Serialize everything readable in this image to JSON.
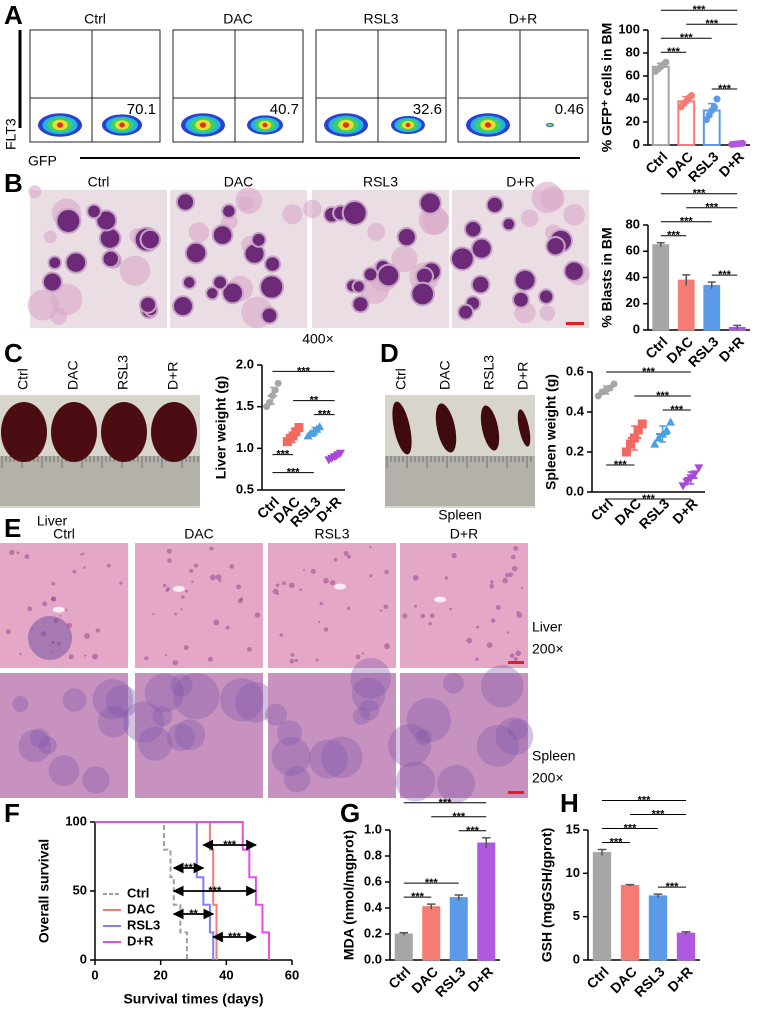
{
  "panel_labels": [
    "A",
    "B",
    "C",
    "D",
    "E",
    "F",
    "G",
    "H"
  ],
  "flow": {
    "groups": [
      "Ctrl",
      "DAC",
      "RSL3",
      "D+R"
    ],
    "percentages": [
      70.1,
      40.7,
      32.6,
      0.46
    ],
    "y_axis": "FLT3",
    "x_axis": "GFP"
  },
  "smear": {
    "groups": [
      "Ctrl",
      "DAC",
      "RSL3",
      "D+R"
    ],
    "magnification": "400×"
  },
  "organs": {
    "liver": {
      "groups": [
        "Ctrl",
        "DAC",
        "RSL3",
        "D+R"
      ],
      "label": "Liver"
    },
    "spleen": {
      "groups": [
        "Ctrl",
        "DAC",
        "RSL3",
        "D+R"
      ],
      "label": "Spleen"
    }
  },
  "histology": {
    "groups": [
      "Ctrl",
      "DAC",
      "RSL3",
      "D+R"
    ],
    "rows": [
      {
        "tissue": "Liver",
        "magnification": "200×"
      },
      {
        "tissue": "Spleen",
        "magnification": "200×"
      }
    ]
  },
  "chart_data": [
    {
      "type": "bar",
      "y_label": "% GFP⁺ cells in BM",
      "categories": [
        "Ctrl",
        "DAC",
        "RSL3",
        "D+R"
      ],
      "values": [
        68,
        38,
        30,
        1
      ],
      "errors": [
        3,
        4,
        6,
        0.5
      ],
      "points": [
        [
          64,
          66,
          68,
          70,
          72
        ],
        [
          33,
          36,
          38,
          41,
          43
        ],
        [
          22,
          26,
          30,
          33,
          40
        ],
        [
          0.5,
          0.8,
          1,
          1.2,
          1.5
        ]
      ],
      "colors": [
        "#a6a6a6",
        "#f47c74",
        "#5b9ae8",
        "#b058e0"
      ],
      "hollow": true,
      "ylim": [
        0,
        100
      ],
      "yticks": [
        0,
        20,
        40,
        60,
        80,
        100
      ],
      "significance": [
        {
          "from": "Ctrl",
          "to": "DAC",
          "label": "***"
        },
        {
          "from": "RSL3",
          "to": "D+R",
          "label": "***"
        },
        {
          "from": "Ctrl",
          "to": "RSL3",
          "label": "***"
        },
        {
          "from": "DAC",
          "to": "D+R",
          "label": "***"
        },
        {
          "from": "Ctrl",
          "to": "D+R",
          "label": "***"
        }
      ]
    },
    {
      "type": "bar",
      "y_label": "% Blasts in BM",
      "categories": [
        "Ctrl",
        "DAC",
        "RSL3",
        "D+R"
      ],
      "values": [
        65,
        38,
        34,
        2
      ],
      "errors": [
        1.5,
        4,
        2.5,
        1.5
      ],
      "colors": [
        "#a6a6a6",
        "#f47c74",
        "#5b9ae8",
        "#b058e0"
      ],
      "hollow": false,
      "ylim": [
        0,
        80
      ],
      "yticks": [
        0,
        20,
        40,
        60,
        80
      ],
      "significance": [
        {
          "from": "Ctrl",
          "to": "DAC",
          "label": "***"
        },
        {
          "from": "RSL3",
          "to": "D+R",
          "label": "***"
        },
        {
          "from": "Ctrl",
          "to": "RSL3",
          "label": "***"
        },
        {
          "from": "DAC",
          "to": "D+R",
          "label": "***"
        },
        {
          "from": "Ctrl",
          "to": "D+R",
          "label": "***"
        }
      ]
    },
    {
      "type": "dot",
      "y_label": "Liver weight (g)",
      "categories": [
        "Ctrl",
        "DAC",
        "RSL3",
        "D+R"
      ],
      "values": [
        1.63,
        1.15,
        1.2,
        0.9
      ],
      "errors": [
        0.1,
        0.08,
        0.05,
        0.03
      ],
      "points": [
        [
          1.5,
          1.55,
          1.63,
          1.7,
          1.78
        ],
        [
          1.08,
          1.12,
          1.15,
          1.2,
          1.25
        ],
        [
          1.15,
          1.18,
          1.2,
          1.23,
          1.26
        ],
        [
          0.86,
          0.88,
          0.9,
          0.92,
          0.94
        ]
      ],
      "colors": [
        "#a6a6a6",
        "#f06a62",
        "#4aa0e0",
        "#a848d8"
      ],
      "markers": [
        "circle",
        "square",
        "triangle",
        "triangle-down"
      ],
      "ylim": [
        0.5,
        2
      ],
      "yticks": [
        0.5,
        {
          "value": 1,
          "label": "1.0"
        },
        1.5,
        {
          "value": 2,
          "label": "2.0"
        }
      ],
      "significance": [
        {
          "from": "Ctrl",
          "to": "DAC",
          "label": "***",
          "below": true
        },
        {
          "from": "Ctrl",
          "to": "RSL3",
          "label": "***",
          "below": true
        },
        {
          "from": "RSL3",
          "to": "D+R",
          "label": "***"
        },
        {
          "from": "DAC",
          "to": "D+R",
          "label": "**"
        },
        {
          "from": "Ctrl",
          "to": "D+R",
          "label": "***"
        }
      ]
    },
    {
      "type": "dot",
      "y_label": "Spleen weight (g)",
      "categories": [
        "Ctrl",
        "DAC",
        "RSL3",
        "D+R"
      ],
      "values": [
        0.51,
        0.27,
        0.29,
        0.07
      ],
      "errors": [
        0.02,
        0.06,
        0.04,
        0.03
      ],
      "points": [
        [
          0.48,
          0.5,
          0.51,
          0.52,
          0.54
        ],
        [
          0.2,
          0.24,
          0.27,
          0.31,
          0.34
        ],
        [
          0.24,
          0.27,
          0.29,
          0.31,
          0.35
        ],
        [
          0.03,
          0.05,
          0.07,
          0.09,
          0.12
        ]
      ],
      "colors": [
        "#a6a6a6",
        "#f06a62",
        "#4aa0e0",
        "#a848d8"
      ],
      "markers": [
        "circle",
        "square",
        "triangle",
        "triangle-down"
      ],
      "ylim": [
        0,
        0.6
      ],
      "yticks": [
        {
          "value": 0,
          "label": "0.0"
        },
        0.2,
        0.4,
        0.6
      ],
      "significance": [
        {
          "from": "Ctrl",
          "to": "DAC",
          "label": "***",
          "below": true
        },
        {
          "from": "Ctrl",
          "to": "D+R",
          "label": "***",
          "below": true
        },
        {
          "from": "RSL3",
          "to": "D+R",
          "label": "***"
        },
        {
          "from": "DAC",
          "to": "D+R",
          "label": "***"
        },
        {
          "from": "Ctrl",
          "to": "D+R",
          "label": "***"
        }
      ]
    },
    {
      "type": "step",
      "y_label": "Overall survival",
      "x_label": "Survival times (days)",
      "xlim": [
        0,
        60
      ],
      "xticks": [
        0,
        20,
        40,
        60
      ],
      "ylim": [
        0,
        100
      ],
      "yticks": [
        0,
        50,
        100
      ],
      "legend": "lower left",
      "series": [
        {
          "name": "Ctrl",
          "color": "#a0a0a0",
          "dashed": true,
          "x": [
            0,
            21,
            21,
            23,
            23,
            24,
            24,
            26,
            26,
            28,
            28
          ],
          "values": [
            100,
            100,
            80,
            80,
            60,
            60,
            40,
            40,
            20,
            20,
            0
          ]
        },
        {
          "name": "DAC",
          "color": "#f47c74",
          "x": [
            0,
            35,
            35,
            36,
            36,
            37,
            37
          ],
          "values": [
            100,
            100,
            80,
            80,
            40,
            40,
            0
          ]
        },
        {
          "name": "RSL3",
          "color": "#7f7fff",
          "x": [
            0,
            31,
            31,
            33,
            33,
            35,
            35,
            36,
            36
          ],
          "values": [
            100,
            100,
            60,
            60,
            40,
            40,
            20,
            20,
            0
          ]
        },
        {
          "name": "D+R",
          "color": "#e84ce8",
          "x": [
            0,
            45,
            45,
            47,
            47,
            49,
            49,
            51,
            51,
            53,
            53
          ],
          "values": [
            100,
            100,
            80,
            80,
            60,
            60,
            40,
            40,
            20,
            20,
            0
          ]
        }
      ],
      "significance": [
        {
          "from": "RSL3",
          "to": "D+R",
          "label": "***"
        },
        {
          "from": "Ctrl",
          "to": "RSL3",
          "label": "**"
        },
        {
          "from": "Ctrl",
          "to": "D+R",
          "label": "***"
        },
        {
          "from": "Ctrl",
          "to": "DAC",
          "label": "**"
        },
        {
          "from": "DAC",
          "to": "D+R",
          "label": "***"
        }
      ]
    },
    {
      "type": "bar",
      "y_label": "MDA (nmol/mgprot)",
      "categories": [
        "Ctrl",
        "DAC",
        "RSL3",
        "D+R"
      ],
      "values": [
        0.2,
        0.41,
        0.48,
        0.9
      ],
      "errors": [
        0.01,
        0.02,
        0.02,
        0.04
      ],
      "colors": [
        "#a6a6a6",
        "#f47c74",
        "#5b9ae8",
        "#b058e0"
      ],
      "hollow": false,
      "ylim": [
        0,
        1
      ],
      "yticks": [
        {
          "value": 0,
          "label": "0.0"
        },
        0.2,
        0.4,
        0.6,
        0.8,
        {
          "value": 1,
          "label": "1.0"
        }
      ],
      "significance": [
        {
          "from": "Ctrl",
          "to": "DAC",
          "label": "***"
        },
        {
          "from": "Ctrl",
          "to": "RSL3",
          "label": "***"
        },
        {
          "from": "RSL3",
          "to": "D+R",
          "label": "***"
        },
        {
          "from": "DAC",
          "to": "D+R",
          "label": "***"
        },
        {
          "from": "Ctrl",
          "to": "D+R",
          "label": "***"
        }
      ]
    },
    {
      "type": "bar",
      "y_label": "GSH (mgGSH/gprot)",
      "categories": [
        "Ctrl",
        "DAC",
        "RSL3",
        "D+R"
      ],
      "values": [
        12.4,
        8.6,
        7.4,
        3.1
      ],
      "errors": [
        0.35,
        0.1,
        0.2,
        0.15
      ],
      "colors": [
        "#a6a6a6",
        "#f47c74",
        "#5b9ae8",
        "#b058e0"
      ],
      "hollow": false,
      "ylim": [
        0,
        15
      ],
      "yticks": [
        0,
        5,
        10,
        15
      ],
      "significance": [
        {
          "from": "Ctrl",
          "to": "DAC",
          "label": "***"
        },
        {
          "from": "RSL3",
          "to": "D+R",
          "label": "***"
        },
        {
          "from": "Ctrl",
          "to": "RSL3",
          "label": "***"
        },
        {
          "from": "DAC",
          "to": "D+R",
          "label": "***"
        },
        {
          "from": "Ctrl",
          "to": "D+R",
          "label": "***"
        }
      ]
    }
  ]
}
